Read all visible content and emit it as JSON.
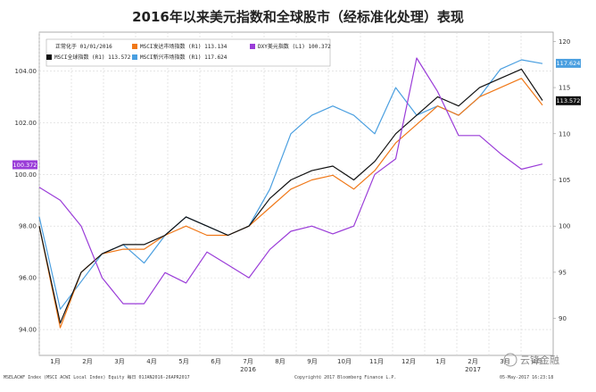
{
  "title": "2016年以来美元指数和全球股市（经标准化处理）表现",
  "chart_data": {
    "type": "line",
    "left_axis": {
      "min": 93,
      "max": 105.5,
      "ticks": [
        94,
        96,
        98,
        100,
        102,
        104
      ],
      "tick_labels": [
        "94.00",
        "96.00",
        "98.00",
        "100.00",
        "102.00",
        "104.00"
      ]
    },
    "right_axis": {
      "min": 86,
      "max": 121,
      "ticks": [
        90,
        95,
        100,
        105,
        110,
        115,
        120
      ],
      "tick_labels": [
        "90",
        "95",
        "100",
        "105",
        "110",
        "115",
        "120"
      ]
    },
    "x_labels": [
      "1月",
      "2月",
      "3月",
      "4月",
      "5月",
      "6月",
      "7月",
      "8月",
      "9月",
      "10月",
      "11月",
      "12月",
      "1月",
      "2月",
      "3月",
      "4月"
    ],
    "year_labels": [
      "2016",
      "2017"
    ],
    "grid": true,
    "legend_header": "正常化于 01/01/2016",
    "series": [
      {
        "name": "MSCI新兴市场指数 (R1) 117.624",
        "axis": "right",
        "color": "#4a9fe0",
        "values": [
          101,
          91,
          94,
          97,
          98,
          96,
          99,
          101,
          100,
          99,
          100,
          104,
          110,
          112,
          113,
          112,
          110,
          115,
          112,
          113,
          112,
          114,
          117,
          118,
          117.6
        ]
      },
      {
        "name": "MSCI发达市场指数 (R1) 113.134",
        "axis": "right",
        "color": "#f07818",
        "values": [
          100,
          89,
          95,
          97,
          97.5,
          97.5,
          99,
          100,
          99,
          99,
          100,
          102,
          104,
          105,
          105.5,
          104,
          106,
          109,
          111,
          113,
          112,
          114,
          115,
          116,
          113.1
        ]
      },
      {
        "name": "MSCI全球指数 (R1) 113.572",
        "axis": "right",
        "color": "#111111",
        "values": [
          100,
          89.5,
          95,
          97,
          98,
          98,
          99,
          101,
          100,
          99,
          100,
          103,
          105,
          106,
          106.5,
          105,
          107,
          110,
          112,
          114,
          113,
          115,
          116,
          117,
          113.6
        ]
      },
      {
        "name": "DXY美元指数 (L1) 100.372",
        "axis": "left",
        "color": "#9a3cd8",
        "values": [
          99.5,
          99,
          98,
          96,
          95,
          95,
          96.2,
          95.8,
          97,
          96.5,
          96,
          97.1,
          97.8,
          98,
          97.7,
          98,
          100,
          100.6,
          104.5,
          103.2,
          101.5,
          101.5,
          100.8,
          100.2,
          100.4
        ]
      }
    ],
    "value_tags": [
      {
        "text": "117.624",
        "color": "#4a9fe0",
        "axis": "right",
        "value": 117.624
      },
      {
        "text": "113.572",
        "color": "#111111",
        "axis": "right",
        "value": 113.572
      },
      {
        "text": "100.372",
        "color": "#9a3cd8",
        "axis": "left",
        "value": 100.372
      }
    ]
  },
  "footer_left": "MSELACWF Index (MSCI ACWI Local Index) Equity 每日 01JAN2016-26APR2017",
  "footer_center": "Copyright© 2017 Bloomberg Finance L.P.",
  "footer_right": "05-May-2017 16:23:18",
  "watermark": "云锋金融",
  "colors": {
    "grid": "#d6d6d6",
    "axis": "#999999"
  }
}
